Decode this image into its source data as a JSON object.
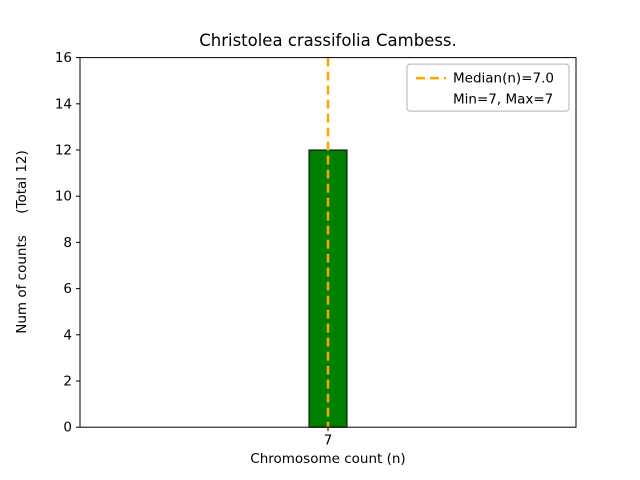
{
  "chart_data": {
    "type": "bar",
    "title": "Christolea crassifolia Cambess.",
    "xlabel": "Chromosome count (n)",
    "ylabel": "Num of counts     (Total 12)",
    "categories": [
      "7"
    ],
    "values": [
      12
    ],
    "ylim": [
      0,
      16
    ],
    "ytick_step": 2,
    "grid": false,
    "bar_color": "#008000",
    "bar_edge_color": "#000000",
    "median_line": {
      "at_category": "7",
      "color": "#ffa500",
      "style": "dashed"
    },
    "legend_position": "upper right",
    "legend": [
      {
        "label": "Median(n)=7.0",
        "symbol": "dashed-line",
        "color": "#ffa500"
      },
      {
        "label": "Min=7, Max=7",
        "symbol": "none"
      }
    ]
  }
}
